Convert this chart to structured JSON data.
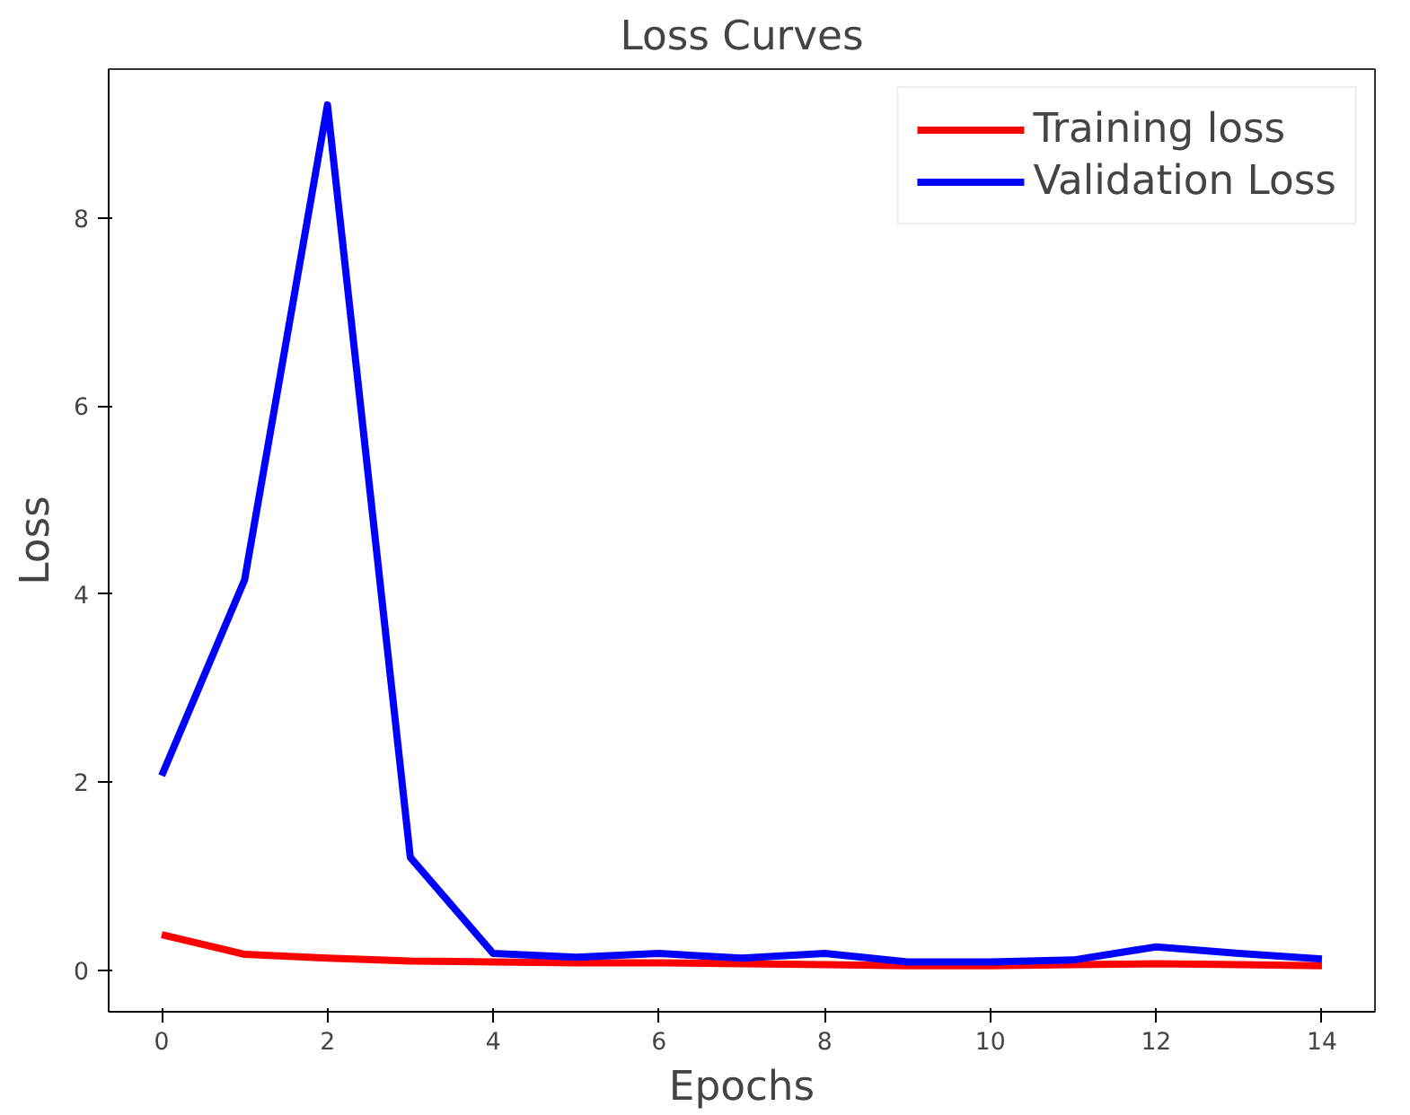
{
  "chart_data": {
    "type": "line",
    "title": "Loss Curves",
    "xlabel": "Epochs",
    "ylabel": "Loss",
    "x": [
      0,
      1,
      2,
      3,
      4,
      5,
      6,
      7,
      8,
      9,
      10,
      11,
      12,
      13,
      14
    ],
    "series": [
      {
        "name": "Training loss",
        "color": "#ff0000",
        "values": [
          0.38,
          0.17,
          0.13,
          0.1,
          0.09,
          0.08,
          0.08,
          0.07,
          0.06,
          0.05,
          0.05,
          0.06,
          0.07,
          0.06,
          0.05
        ]
      },
      {
        "name": "Validation Loss",
        "color": "#0000ff",
        "values": [
          2.07,
          4.15,
          9.2,
          1.2,
          0.18,
          0.14,
          0.18,
          0.13,
          0.18,
          0.09,
          0.09,
          0.11,
          0.25,
          0.18,
          0.12
        ]
      }
    ],
    "xlim": [
      -0.64,
      14.64
    ],
    "ylim": [
      -0.44,
      9.58
    ],
    "xticks": [
      0,
      2,
      4,
      6,
      8,
      10,
      12,
      14
    ],
    "yticks": [
      0,
      2,
      4,
      6,
      8
    ],
    "grid": false,
    "legend": "top right",
    "line_style": "solid",
    "marker": "none"
  }
}
